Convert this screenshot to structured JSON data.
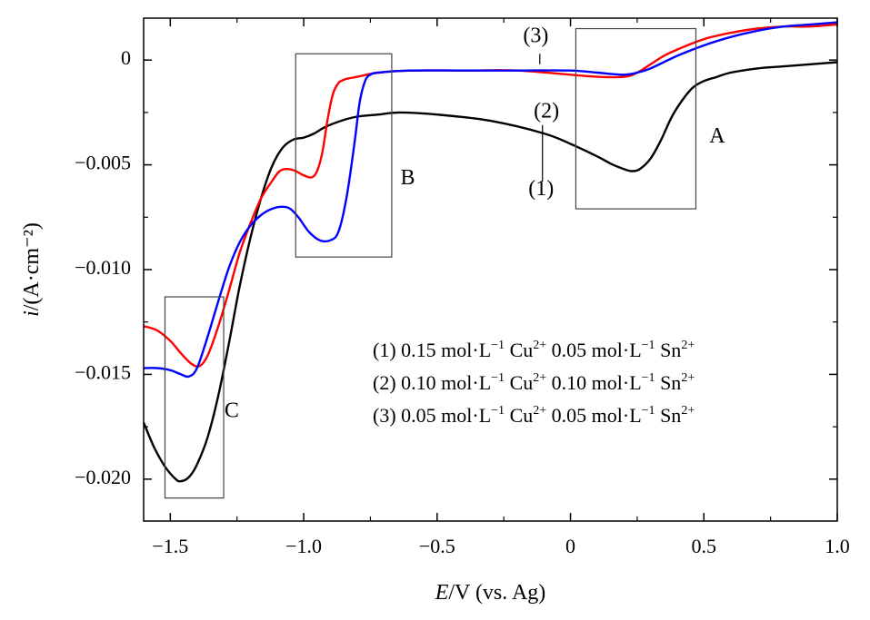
{
  "chart_data": {
    "type": "line",
    "xlabel": {
      "italic": "E",
      "rest": "/V (vs. Ag)"
    },
    "ylabel": {
      "italic": "i",
      "rest": "/(A·cm⁻²)"
    },
    "xlim": [
      -1.6,
      1.0
    ],
    "ylim": [
      -0.022,
      0.002
    ],
    "xticks": [
      -1.5,
      -1.0,
      -0.5,
      0,
      0.5,
      1.0
    ],
    "xtick_labels": [
      "−1.5",
      "−1.0",
      "−0.5",
      "0",
      "0.5",
      "1.0"
    ],
    "yticks": [
      0,
      -0.005,
      -0.01,
      -0.015,
      -0.02
    ],
    "ytick_labels": [
      "0",
      "−0.005",
      "−0.010",
      "−0.015",
      "−0.020"
    ],
    "grid": false,
    "series": [
      {
        "name": "(1) 0.15 mol·L⁻¹ Cu²⁺ 0.05 mol·L⁻¹ Sn²⁺",
        "color": "#000000",
        "x": [
          -1.6,
          -1.56,
          -1.52,
          -1.48,
          -1.46,
          -1.43,
          -1.4,
          -1.36,
          -1.32,
          -1.28,
          -1.24,
          -1.2,
          -1.16,
          -1.12,
          -1.08,
          -1.04,
          -1.0,
          -0.96,
          -0.92,
          -0.86,
          -0.8,
          -0.72,
          -0.64,
          -0.5,
          -0.3,
          -0.1,
          0.0,
          0.1,
          0.16,
          0.2,
          0.23,
          0.26,
          0.3,
          0.34,
          0.38,
          0.42,
          0.46,
          0.5,
          0.55,
          0.6,
          0.7,
          0.8,
          0.9,
          1.0
        ],
        "y": [
          -0.0173,
          -0.0185,
          -0.0194,
          -0.02,
          -0.0201,
          -0.0199,
          -0.0193,
          -0.018,
          -0.016,
          -0.0135,
          -0.0108,
          -0.0085,
          -0.0066,
          -0.0051,
          -0.0042,
          -0.0038,
          -0.0037,
          -0.0035,
          -0.0032,
          -0.0029,
          -0.0027,
          -0.0026,
          -0.0025,
          -0.0026,
          -0.0029,
          -0.0035,
          -0.004,
          -0.0046,
          -0.005,
          -0.0052,
          -0.0053,
          -0.0052,
          -0.0047,
          -0.0038,
          -0.0027,
          -0.0019,
          -0.0013,
          -0.001,
          -0.0008,
          -0.0006,
          -0.0004,
          -0.0003,
          -0.0002,
          -0.0001
        ]
      },
      {
        "name": "(2) 0.10 mol·L⁻¹ Cu²⁺ 0.10 mol·L⁻¹ Sn²⁺",
        "color": "#ff0000",
        "x": [
          -1.6,
          -1.55,
          -1.5,
          -1.46,
          -1.42,
          -1.39,
          -1.36,
          -1.32,
          -1.28,
          -1.24,
          -1.2,
          -1.16,
          -1.12,
          -1.09,
          -1.06,
          -1.03,
          -1.0,
          -0.97,
          -0.95,
          -0.93,
          -0.91,
          -0.89,
          -0.87,
          -0.86,
          -0.84,
          -0.8,
          -0.72,
          -0.6,
          -0.4,
          -0.2,
          0.0,
          0.1,
          0.2,
          0.25,
          0.3,
          0.35,
          0.4,
          0.5,
          0.6,
          0.7,
          0.8,
          0.9,
          1.0
        ],
        "y": [
          -0.0127,
          -0.0129,
          -0.0134,
          -0.014,
          -0.0145,
          -0.0146,
          -0.0141,
          -0.0127,
          -0.011,
          -0.0092,
          -0.0078,
          -0.0066,
          -0.0058,
          -0.0053,
          -0.0052,
          -0.0053,
          -0.0055,
          -0.0056,
          -0.0053,
          -0.0044,
          -0.0028,
          -0.0016,
          -0.0011,
          -0.001,
          -0.0009,
          -0.0008,
          -0.0006,
          -0.0005,
          -0.0005,
          -0.0005,
          -0.0007,
          -0.0008,
          -0.0008,
          -0.0006,
          -0.0002,
          0.0002,
          0.0005,
          0.001,
          0.0013,
          0.0015,
          0.0016,
          0.0016,
          0.0017
        ]
      },
      {
        "name": "(3) 0.05 mol·L⁻¹ Cu²⁺ 0.05 mol·L⁻¹ Sn²⁺",
        "color": "#0000ff",
        "x": [
          -1.6,
          -1.55,
          -1.5,
          -1.46,
          -1.43,
          -1.4,
          -1.36,
          -1.32,
          -1.28,
          -1.24,
          -1.2,
          -1.16,
          -1.12,
          -1.08,
          -1.05,
          -1.02,
          -0.98,
          -0.94,
          -0.9,
          -0.87,
          -0.84,
          -0.81,
          -0.79,
          -0.77,
          -0.75,
          -0.72,
          -0.6,
          -0.4,
          -0.2,
          0.0,
          0.1,
          0.2,
          0.25,
          0.3,
          0.4,
          0.5,
          0.6,
          0.7,
          0.8,
          0.9,
          1.0
        ],
        "y": [
          -0.0147,
          -0.0147,
          -0.0148,
          -0.015,
          -0.0151,
          -0.0147,
          -0.0132,
          -0.0115,
          -0.0099,
          -0.0087,
          -0.0079,
          -0.0074,
          -0.0071,
          -0.007,
          -0.0071,
          -0.0075,
          -0.0082,
          -0.0086,
          -0.0086,
          -0.0082,
          -0.0066,
          -0.004,
          -0.002,
          -0.001,
          -0.0007,
          -0.0006,
          -0.0005,
          -0.0005,
          -0.0005,
          -0.0005,
          -0.0006,
          -0.0007,
          -0.0006,
          -0.0004,
          0.0002,
          0.0007,
          0.0011,
          0.0014,
          0.0016,
          0.0017,
          0.0018
        ]
      }
    ],
    "boxes": [
      {
        "label": "A",
        "x": [
          0.02,
          0.47
        ],
        "y": [
          -0.0071,
          0.0015
        ]
      },
      {
        "label": "B",
        "x": [
          -1.03,
          -0.67
        ],
        "y": [
          -0.0094,
          0.0003
        ]
      },
      {
        "label": "C",
        "x": [
          -1.52,
          -1.3
        ],
        "y": [
          -0.0209,
          -0.0113
        ]
      }
    ],
    "annotations": [
      {
        "text": "A",
        "x": 0.55,
        "y": -0.0037
      },
      {
        "text": "B",
        "x": -0.61,
        "y": -0.0057
      },
      {
        "text": "C",
        "x": -1.27,
        "y": -0.0168
      },
      {
        "text": "(3)",
        "x": -0.13,
        "y": 0.0011
      },
      {
        "text": "(2)",
        "x": -0.09,
        "y": -0.0025
      },
      {
        "text": "(1)",
        "x": -0.11,
        "y": -0.0062
      }
    ],
    "leader_lines": [
      {
        "x": -0.115,
        "y": [
          0.0003,
          -0.0002
        ]
      },
      {
        "x": -0.105,
        "y": [
          -0.0031,
          -0.0058
        ]
      }
    ],
    "legend": {
      "placement": "bottom-right",
      "entries": [
        {
          "prefix": "(1) 0.15 mol·L",
          "sup1": "−1",
          "mid": " Cu",
          "sup2": "2+",
          "mid2": " 0.05 mol·L",
          "sup3": "−1",
          "end": " Sn",
          "sup4": "2+"
        },
        {
          "prefix": "(2) 0.10 mol·L",
          "sup1": "−1",
          "mid": " Cu",
          "sup2": "2+",
          "mid2": " 0.10 mol·L",
          "sup3": "−1",
          "end": " Sn",
          "sup4": "2+"
        },
        {
          "prefix": "(3) 0.05 mol·L",
          "sup1": "−1",
          "mid": " Cu",
          "sup2": "2+",
          "mid2": " 0.05 mol·L",
          "sup3": "−1",
          "end": " Sn",
          "sup4": "2+"
        }
      ]
    }
  }
}
